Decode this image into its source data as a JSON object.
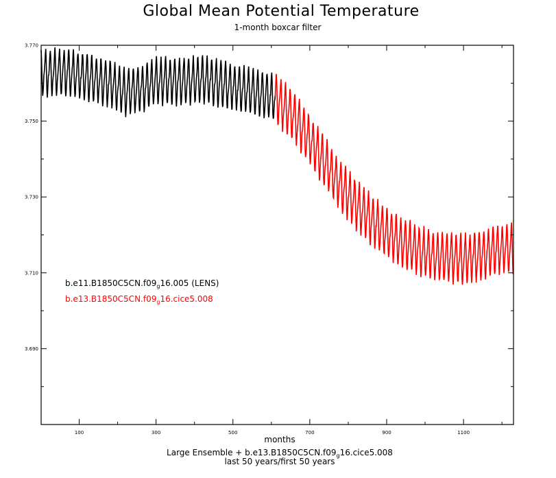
{
  "chart_data": {
    "type": "line",
    "title": "Global Mean Potential Temperature",
    "subtitle": "1-month boxcar filter",
    "xlabel": "months",
    "ylabel": "",
    "xlim": [
      1,
      1230
    ],
    "ylim": [
      3.67,
      3.77
    ],
    "x_ticks": [
      100,
      300,
      500,
      700,
      900,
      1100
    ],
    "x_tick_labels": [
      "100",
      "300",
      "500",
      "700",
      "900",
      "1100"
    ],
    "y_ticks": [
      3.69,
      3.71,
      3.73,
      3.75,
      3.77
    ],
    "y_tick_labels": [
      "3.690",
      "3.710",
      "3.730",
      "3.750",
      "3.770"
    ],
    "grid": false,
    "legend_position": "left-center",
    "footnote": {
      "line1_pre": "Large Ensemble + b.e13.B1850C5CN.f09",
      "line1_sub": "g",
      "line1_post": "16.cice5.008",
      "line2": "last 50 years/first 50 years"
    },
    "series": [
      {
        "name": "b.e11.B1850C5CN.f09g16.005 (LENS)",
        "label_pre": "b.e11.B1850C5CN.f09",
        "label_sub": "g",
        "label_post": "16.005 (LENS)",
        "color": "#000000",
        "seasonal_amplitude": 0.0052,
        "x": [
          1,
          60,
          120,
          180,
          220,
          260,
          300,
          360,
          420,
          480,
          540,
          610
        ],
        "y": [
          3.7625,
          3.763,
          3.7615,
          3.76,
          3.7575,
          3.7585,
          3.7605,
          3.7605,
          3.761,
          3.7595,
          3.758,
          3.756
        ]
      },
      {
        "name": "b.e13.B1850C5CN.f09g16.cice5.008",
        "label_pre": "b.e13.B1850C5CN.f09",
        "label_sub": "g",
        "label_post": "16.cice5.008",
        "color": "#ff0000",
        "seasonal_amplitude": 0.0055,
        "x": [
          610,
          660,
          700,
          740,
          780,
          820,
          860,
          900,
          940,
          980,
          1020,
          1060,
          1100,
          1140,
          1180,
          1230
        ],
        "y": [
          3.756,
          3.751,
          3.745,
          3.739,
          3.733,
          3.728,
          3.724,
          3.7205,
          3.718,
          3.716,
          3.7145,
          3.714,
          3.7135,
          3.7145,
          3.716,
          3.7165
        ]
      }
    ]
  }
}
